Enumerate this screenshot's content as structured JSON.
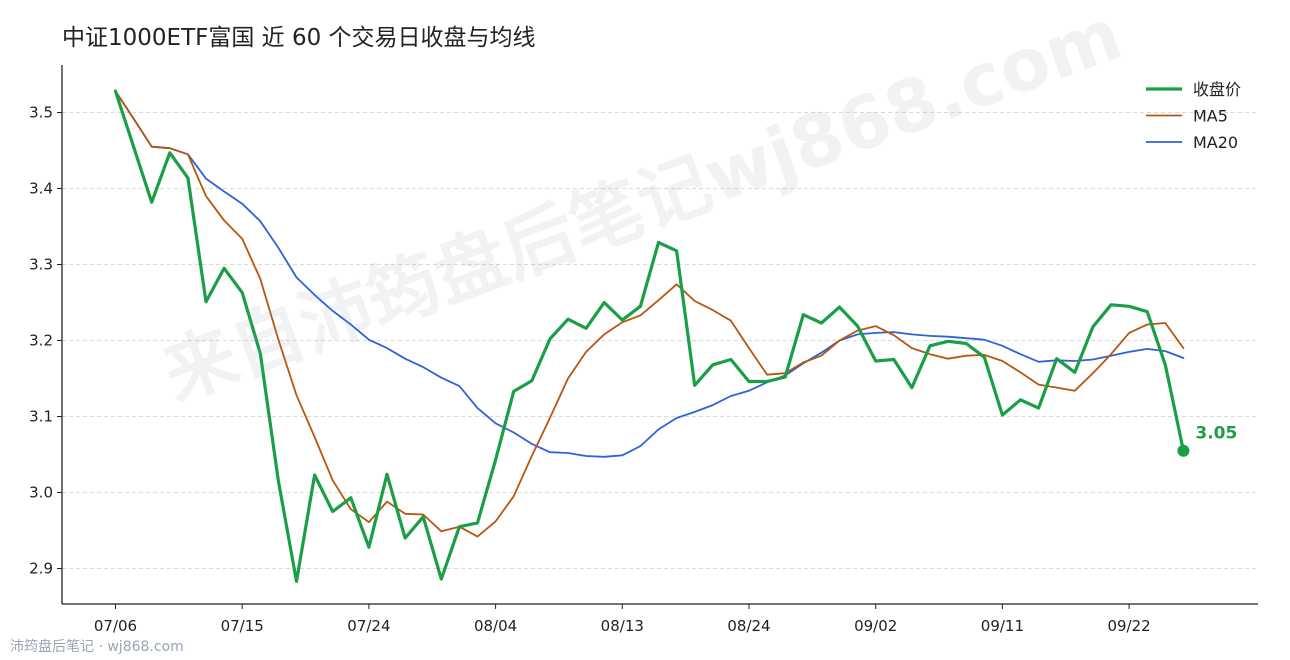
{
  "title": "中证1000ETF富国 近 60 个交易日收盘与均线",
  "watermark_center": "来自沛筠盘后笔记wj868.com",
  "watermark_corner": "沛筠盘后笔记 · wj868.com",
  "colors": {
    "close": "#1a9e46",
    "ma5": "#b8560f",
    "ma20": "#2e62d9"
  },
  "chart_data": {
    "type": "line",
    "title": "中证1000ETF富国 近 60 个交易日收盘与均线",
    "xlabel": "",
    "ylabel": "",
    "ylim": [
      2.86,
      3.54
    ],
    "yticks": [
      2.9,
      3.0,
      3.1,
      3.2,
      3.3,
      3.4,
      3.5
    ],
    "xtick_labels": [
      "07/06",
      "07/15",
      "07/24",
      "08/04",
      "08/13",
      "08/24",
      "09/02",
      "09/11",
      "09/22"
    ],
    "xtick_index": [
      0,
      7,
      14,
      21,
      28,
      35,
      42,
      49,
      56
    ],
    "grid": "horizontal dashed",
    "legend_position": "top-right",
    "last_label": "3.05",
    "series": [
      {
        "name": "收盘价",
        "key": "close",
        "values": [
          3.528,
          3.455,
          3.382,
          3.447,
          3.414,
          3.251,
          3.295,
          3.263,
          3.183,
          3.015,
          2.883,
          3.023,
          2.975,
          2.993,
          2.928,
          3.024,
          2.94,
          2.968,
          2.886,
          2.955,
          2.96,
          3.043,
          3.133,
          3.147,
          3.202,
          3.228,
          3.216,
          3.25,
          3.227,
          3.245,
          3.329,
          3.318,
          3.141,
          3.168,
          3.175,
          3.146,
          3.146,
          3.152,
          3.234,
          3.223,
          3.244,
          3.219,
          3.173,
          3.175,
          3.138,
          3.193,
          3.199,
          3.196,
          3.178,
          3.102,
          3.122,
          3.111,
          3.176,
          3.158,
          3.218,
          3.247,
          3.245,
          3.238,
          3.168,
          3.055
        ]
      },
      {
        "name": "MA5",
        "key": "ma5",
        "values": [
          3.528,
          3.492,
          3.455,
          3.453,
          3.445,
          3.39,
          3.358,
          3.334,
          3.281,
          3.201,
          3.128,
          3.073,
          3.016,
          2.978,
          2.961,
          2.988,
          2.972,
          2.971,
          2.949,
          2.955,
          2.942,
          2.962,
          2.995,
          3.048,
          3.098,
          3.15,
          3.185,
          3.208,
          3.224,
          3.233,
          3.253,
          3.274,
          3.252,
          3.24,
          3.226,
          3.19,
          3.155,
          3.157,
          3.171,
          3.18,
          3.2,
          3.213,
          3.219,
          3.207,
          3.19,
          3.182,
          3.176,
          3.18,
          3.181,
          3.173,
          3.158,
          3.142,
          3.138,
          3.134,
          3.157,
          3.182,
          3.21,
          3.221,
          3.223,
          3.19
        ]
      },
      {
        "name": "MA20",
        "key": "ma20",
        "values": [
          3.528,
          3.492,
          3.455,
          3.453,
          3.445,
          3.413,
          3.396,
          3.38,
          3.357,
          3.322,
          3.283,
          3.26,
          3.239,
          3.221,
          3.201,
          3.19,
          3.176,
          3.165,
          3.151,
          3.14,
          3.111,
          3.091,
          3.079,
          3.064,
          3.053,
          3.052,
          3.048,
          3.047,
          3.049,
          3.061,
          3.083,
          3.098,
          3.106,
          3.115,
          3.127,
          3.134,
          3.145,
          3.154,
          3.17,
          3.184,
          3.2,
          3.208,
          3.21,
          3.211,
          3.208,
          3.206,
          3.205,
          3.203,
          3.201,
          3.193,
          3.182,
          3.172,
          3.174,
          3.173,
          3.175,
          3.18,
          3.185,
          3.189,
          3.186,
          3.177
        ]
      }
    ]
  }
}
